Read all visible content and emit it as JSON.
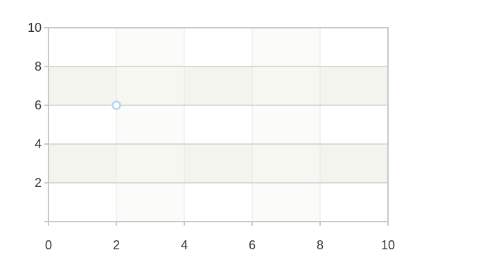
{
  "chart_data": {
    "type": "scatter",
    "title": "",
    "xlabel": "",
    "ylabel": "",
    "xlim": [
      0,
      10
    ],
    "ylim": [
      0,
      10
    ],
    "x_ticks": [
      0,
      2,
      4,
      6,
      8,
      10
    ],
    "y_ticks": [
      2,
      4,
      6,
      8,
      10
    ],
    "grid": true,
    "series": [
      {
        "x": [
          2
        ],
        "y": [
          6
        ]
      }
    ]
  },
  "colors": {
    "plot_border": "#c8c8c8",
    "grid_major": "#cfcfcf",
    "grid_minor": "#e6e6e6",
    "band_fill": "#f4f4ee",
    "band_fill_vertical": "#f9f9f5",
    "point_stroke": "#b4d4f0",
    "point_fill": "#ffffff"
  }
}
